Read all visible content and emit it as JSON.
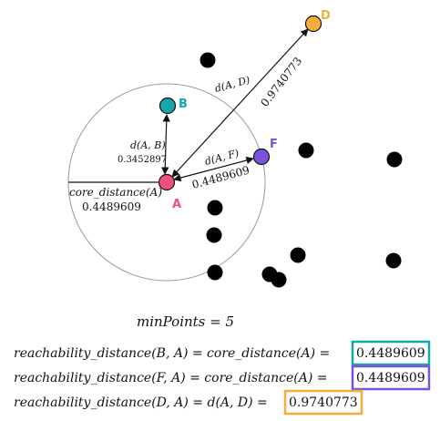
{
  "colors": {
    "A": "#f0517a",
    "B": "#17a7a8",
    "D": "#f6ad3c",
    "F": "#7b52d9",
    "noise": "#000000",
    "circle_stroke": "#9a9a9a"
  },
  "points": {
    "A": {
      "label": "A"
    },
    "B": {
      "label": "B"
    },
    "F": {
      "label": "F"
    },
    "D": {
      "label": "D"
    }
  },
  "edges": {
    "core_label": "core_distance(A)",
    "core_value": "0.4489609",
    "dAB_label": "d(A, B)",
    "dAB_value": "0.3452897",
    "dAF_label": "d(A, F)",
    "dAF_value": "0.4489609",
    "dAD_label": "d(A, D)",
    "dAD_value": "0.9740773"
  },
  "min_points": "minPoints = 5",
  "formulas": [
    {
      "text": "reachability_distance(B, A) = core_distance(A) =",
      "value": "0.4489609",
      "box_color": "#17a7a8"
    },
    {
      "text": "reachability_distance(F, A) = core_distance(A) =",
      "value": "0.4489609",
      "box_color": "#7b52d9"
    },
    {
      "text": "reachability_distance(D, A) = d(A, D) =",
      "value": "0.9740773",
      "box_color": "#f6ad3c"
    }
  ]
}
